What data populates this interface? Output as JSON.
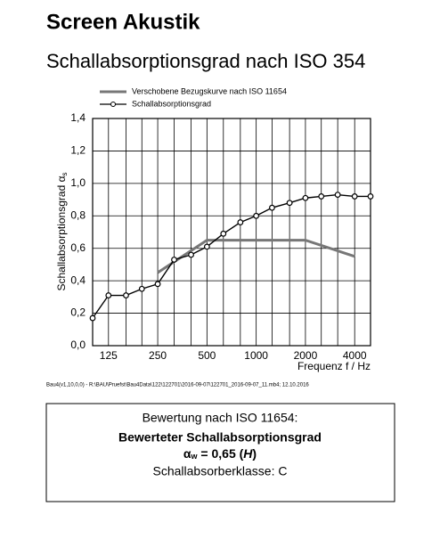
{
  "chart_data": {
    "type": "line",
    "title": "Screen Akustik",
    "subtitle": "Schallabsorptionsgrad nach ISO 354",
    "y_label": "Schallabsorptionsgrad α",
    "y_label_sub": "s",
    "x_label": "Frequenz f / Hz",
    "xscale": "log",
    "xlim": [
      100,
      5000
    ],
    "ylim": [
      0,
      1.4
    ],
    "xticks": [
      125,
      250,
      500,
      1000,
      2000,
      4000
    ],
    "yticks": [
      {
        "value": 0,
        "label": "0,0"
      },
      {
        "value": 0.2,
        "label": "0,2"
      },
      {
        "value": 0.4,
        "label": "0,4"
      },
      {
        "value": 0.6,
        "label": "0,6"
      },
      {
        "value": 0.8,
        "label": "0,8"
      },
      {
        "value": 1.0,
        "label": "1,0"
      },
      {
        "value": 1.2,
        "label": "1,2"
      },
      {
        "value": 1.4,
        "label": "1,4"
      }
    ],
    "grid": true,
    "series": [
      {
        "name": "Verschobene Bezugskurve nach ISO 11654",
        "color": "#777777",
        "marker": false,
        "x": [
          250,
          500,
          1000,
          2000,
          4000
        ],
        "values": [
          0.45,
          0.65,
          0.65,
          0.65,
          0.55
        ]
      },
      {
        "name": "Schallabsorptionsgrad",
        "color": "#000000",
        "marker": true,
        "x": [
          100,
          125,
          160,
          200,
          250,
          315,
          400,
          500,
          630,
          800,
          1000,
          1250,
          1600,
          2000,
          2500,
          3150,
          4000,
          5000
        ],
        "values": [
          0.17,
          0.31,
          0.31,
          0.35,
          0.38,
          0.53,
          0.56,
          0.61,
          0.69,
          0.76,
          0.8,
          0.85,
          0.88,
          0.91,
          0.92,
          0.93,
          0.92,
          0.92
        ]
      }
    ]
  },
  "footer_note": "Bau4(v1,10,0,0) - R:\\BAU\\Pruefst\\Bau4Data\\122\\122701\\2016-09-07\\122701_2016-09-07_11.mb4; 12.10.2016",
  "rating": {
    "heading": "Bewertung nach ISO 11654:",
    "title": "Bewerteter Schallabsorptionsgrad",
    "symbol": "α",
    "symbol_sub": "w",
    "value": " = 0,65 (",
    "shape": "H",
    "close": ")",
    "class": "Schallabsorberklasse: C"
  }
}
